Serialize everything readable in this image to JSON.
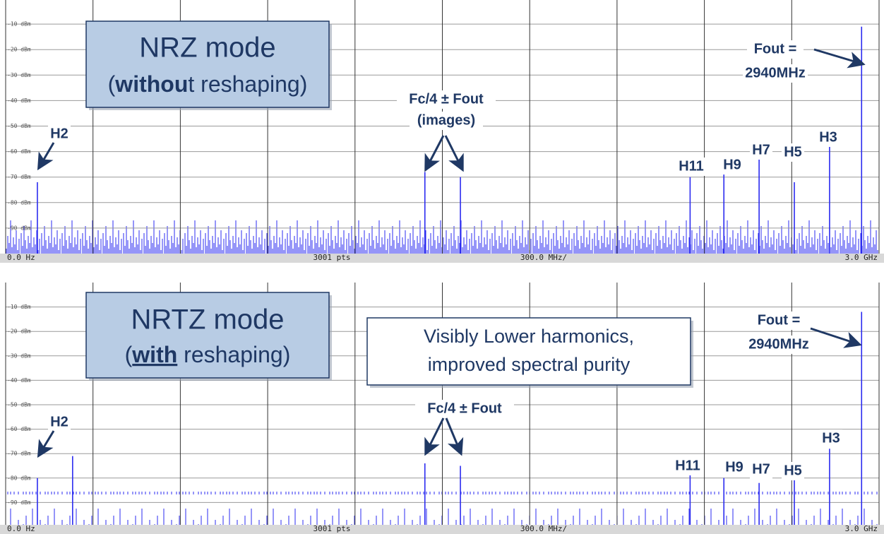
{
  "chart_data": [
    {
      "type": "stem",
      "color": "#2b2bf0",
      "title": "NRZ mode",
      "subtitle_parts": [
        "(",
        "withou",
        "t reshaping)"
      ],
      "xlim": [
        0,
        3000
      ],
      "xticks": [
        0,
        300,
        600,
        900,
        1200,
        1500,
        1800,
        2100,
        2400,
        2700,
        3000
      ],
      "ylim": [
        -100,
        0
      ],
      "yticks": [
        {
          "value": -10,
          "label": "-10 dBm"
        },
        {
          "value": -20,
          "label": "-20 dBm"
        },
        {
          "value": -30,
          "label": "-30 dBm"
        },
        {
          "value": -40,
          "label": "-40 dBm"
        },
        {
          "value": -50,
          "label": "-50 dBm"
        },
        {
          "value": -60,
          "label": "-60 dBm"
        },
        {
          "value": -70,
          "label": "-70 dBm"
        },
        {
          "value": -80,
          "label": "-80 dBm"
        },
        {
          "value": -90,
          "label": "-90 dBm"
        }
      ],
      "grid": true,
      "footer": [
        "0.0 Hz",
        "3001 pts",
        "300.0 MHz/",
        "3.0 GHz"
      ],
      "x": [
        109,
        1440,
        1562,
        2351,
        2467,
        2588,
        2709,
        2830,
        2940
      ],
      "values": [
        -72,
        -68,
        -70,
        -70,
        -69,
        -63,
        -72,
        -57,
        -11
      ],
      "annotations": [
        "Fout =",
        "2940MHz",
        "Fc/4 ± Fout",
        "(images)",
        "H2",
        "H11",
        "H9",
        "H7",
        "H5",
        "H3"
      ]
    },
    {
      "type": "stem",
      "color": "#2b2bf0",
      "title": "NRTZ mode",
      "subtitle_parts": [
        "(",
        "with",
        " reshaping)"
      ],
      "note": [
        "Visibly Lower harmonics,",
        "improved spectral purity"
      ],
      "xlim": [
        0,
        3000
      ],
      "xticks": [
        0,
        300,
        600,
        900,
        1200,
        1500,
        1800,
        2100,
        2400,
        2700,
        3000
      ],
      "ylim": [
        -100,
        0
      ],
      "yticks": [
        {
          "value": -10,
          "label": "-10 dBm"
        },
        {
          "value": -20,
          "label": "-20 dBm"
        },
        {
          "value": -30,
          "label": "-30 dBm"
        },
        {
          "value": -40,
          "label": "-40 dBm"
        },
        {
          "value": -50,
          "label": "-50 dBm"
        },
        {
          "value": -60,
          "label": "-60 dBm"
        },
        {
          "value": -70,
          "label": "-70 dBm"
        },
        {
          "value": -80,
          "label": "-80 dBm"
        },
        {
          "value": -90,
          "label": "-90 dBm"
        }
      ],
      "grid": true,
      "footer": [
        "0.0 Hz",
        "3001 pts",
        "300.0 MHz/",
        "3.0 GHz"
      ],
      "x": [
        109,
        230,
        1440,
        1562,
        2351,
        2467,
        2588,
        2709,
        2830,
        2940
      ],
      "values": [
        -80,
        -71,
        -74,
        -75,
        -78,
        -80,
        -82,
        -80,
        -68,
        -12
      ],
      "annotations": [
        "Fout =",
        "2940MHz",
        "Fc/4 ± Fout",
        "H2",
        "H11",
        "H9",
        "H7",
        "H5",
        "H3"
      ]
    }
  ]
}
